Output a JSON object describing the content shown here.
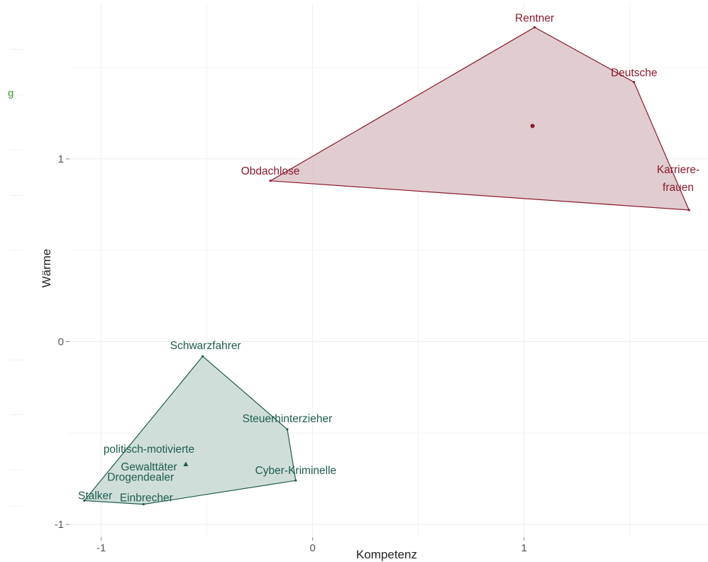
{
  "chart_data": {
    "type": "scatter",
    "xlabel": "Kompetenz",
    "ylabel": "Wärme",
    "xlim": [
      -1.15,
      1.87
    ],
    "ylim": [
      -1.07,
      1.85
    ],
    "x_ticks": [
      -1,
      0,
      1
    ],
    "y_ticks": [
      -1,
      0,
      1
    ],
    "x_tick_labels": [
      "-1",
      "0",
      "1"
    ],
    "y_tick_labels": [
      "-1",
      "0",
      "1"
    ],
    "grid": true,
    "legend_fragment": "g",
    "series": [
      {
        "color": "#8b1a2b",
        "fill": "#dcc4c8",
        "center_marker": "circle",
        "centroid": [
          1.04,
          1.18
        ],
        "hull": [
          [
            1.05,
            1.72
          ],
          [
            1.52,
            1.42
          ],
          [
            1.78,
            0.72
          ],
          [
            -0.2,
            0.88
          ]
        ],
        "points": [
          {
            "label": "Rentner",
            "x": 1.05,
            "y": 1.72
          },
          {
            "label": "Deutsche",
            "x": 1.52,
            "y": 1.42
          },
          {
            "label": "Karriere-\nfrauen",
            "x": 1.78,
            "y": 0.72
          },
          {
            "label": "Obdachlose",
            "x": -0.2,
            "y": 0.88
          }
        ]
      },
      {
        "color": "#1e5c4e",
        "fill": "#c8d8d3",
        "center_marker": "triangle",
        "centroid": [
          -0.6,
          -0.67
        ],
        "hull": [
          [
            -0.52,
            -0.08
          ],
          [
            -0.12,
            -0.48
          ],
          [
            -0.08,
            -0.76
          ],
          [
            -0.8,
            -0.89
          ],
          [
            -1.08,
            -0.87
          ]
        ],
        "points": [
          {
            "label": "Schwarzfahrer",
            "x": -0.52,
            "y": -0.08
          },
          {
            "label": "Steuerhinterzieher",
            "x": -0.12,
            "y": -0.48
          },
          {
            "label": "Cyber-Kriminelle",
            "x": -0.08,
            "y": -0.76
          },
          {
            "label": "politisch-motivierte\nGewalttäter",
            "x": -0.6,
            "y": -0.67
          },
          {
            "label": "Drogendealer",
            "x": -0.78,
            "y": -0.82
          },
          {
            "label": "Einbrecher",
            "x": -0.8,
            "y": -0.89
          },
          {
            "label": "Stalker",
            "x": -1.08,
            "y": -0.87
          }
        ]
      }
    ]
  }
}
